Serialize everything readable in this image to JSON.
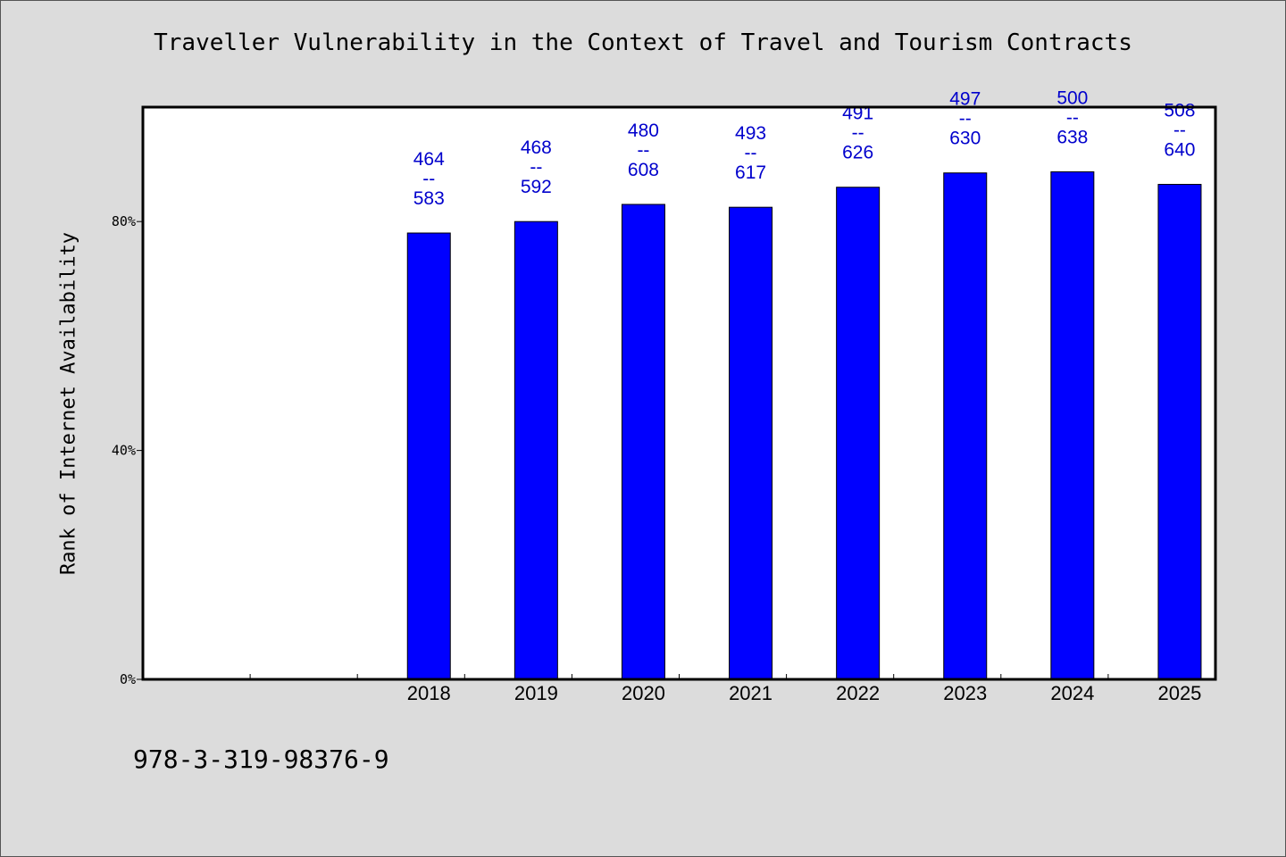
{
  "chart_data": {
    "type": "bar",
    "title": "Traveller Vulnerability in the Context of Travel and Tourism Contracts",
    "ylabel": "Rank of Internet Availability",
    "xlabel": "",
    "categories": [
      "",
      "",
      "2018",
      "2019",
      "2020",
      "2021",
      "2022",
      "2023",
      "2024",
      "2025"
    ],
    "values": [
      null,
      null,
      78,
      80,
      83,
      82.5,
      86,
      88.5,
      88.7,
      86.5
    ],
    "bar_labels": [
      null,
      null,
      {
        "top": "464",
        "sep": "--",
        "bottom": "583"
      },
      {
        "top": "468",
        "sep": "--",
        "bottom": "592"
      },
      {
        "top": "480",
        "sep": "--",
        "bottom": "608"
      },
      {
        "top": "493",
        "sep": "--",
        "bottom": "617"
      },
      {
        "top": "491",
        "sep": "--",
        "bottom": "626"
      },
      {
        "top": "497",
        "sep": "--",
        "bottom": "630"
      },
      {
        "top": "500",
        "sep": "--",
        "bottom": "638"
      },
      {
        "top": "508",
        "sep": "--",
        "bottom": "640"
      }
    ],
    "ylim": [
      0,
      100
    ],
    "yticks": [
      {
        "value": 0,
        "label": "0%"
      },
      {
        "value": 40,
        "label": "40%"
      },
      {
        "value": 80,
        "label": "80%"
      }
    ],
    "grid": false,
    "colors": {
      "bar": "#0000ff",
      "label": "#0000cc",
      "plot_bg": "#ffffff",
      "page_bg": "#dcdcdc"
    }
  },
  "footer": "978-3-319-98376-9"
}
